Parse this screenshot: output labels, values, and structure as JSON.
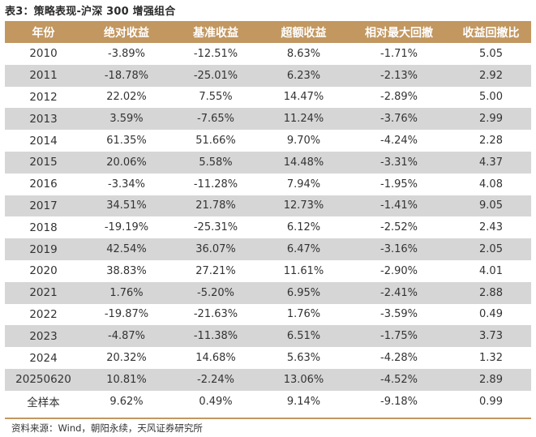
{
  "title": "表3：策略表现-沪深 300 增强组合",
  "table": {
    "headers": [
      "年份",
      "绝对收益",
      "基准收益",
      "超额收益",
      "相对最大回撤",
      "收益回撤比"
    ],
    "rows": [
      [
        "2010",
        "-3.89%",
        "-12.51%",
        "8.63%",
        "-1.71%",
        "5.05"
      ],
      [
        "2011",
        "-18.78%",
        "-25.01%",
        "6.23%",
        "-2.13%",
        "2.92"
      ],
      [
        "2012",
        "22.02%",
        "7.55%",
        "14.47%",
        "-2.89%",
        "5.00"
      ],
      [
        "2013",
        "3.59%",
        "-7.65%",
        "11.24%",
        "-3.76%",
        "2.99"
      ],
      [
        "2014",
        "61.35%",
        "51.66%",
        "9.70%",
        "-4.24%",
        "2.28"
      ],
      [
        "2015",
        "20.06%",
        "5.58%",
        "14.48%",
        "-3.31%",
        "4.37"
      ],
      [
        "2016",
        "-3.34%",
        "-11.28%",
        "7.94%",
        "-1.95%",
        "4.08"
      ],
      [
        "2017",
        "34.51%",
        "21.78%",
        "12.73%",
        "-1.41%",
        "9.05"
      ],
      [
        "2018",
        "-19.19%",
        "-25.31%",
        "6.12%",
        "-2.52%",
        "2.43"
      ],
      [
        "2019",
        "42.54%",
        "36.07%",
        "6.47%",
        "-3.16%",
        "2.05"
      ],
      [
        "2020",
        "38.83%",
        "27.21%",
        "11.61%",
        "-2.90%",
        "4.01"
      ],
      [
        "2021",
        "1.76%",
        "-5.20%",
        "6.95%",
        "-2.41%",
        "2.88"
      ],
      [
        "2022",
        "-19.87%",
        "-21.63%",
        "1.76%",
        "-3.59%",
        "0.49"
      ],
      [
        "2023",
        "-4.87%",
        "-11.38%",
        "6.51%",
        "-1.75%",
        "3.73"
      ],
      [
        "2024",
        "20.32%",
        "14.68%",
        "5.63%",
        "-4.28%",
        "1.32"
      ],
      [
        "20250620",
        "10.81%",
        "-2.24%",
        "13.06%",
        "-4.52%",
        "2.89"
      ],
      [
        "全样本",
        "9.62%",
        "0.49%",
        "9.14%",
        "-9.18%",
        "0.99"
      ]
    ]
  },
  "source": "资料来源：Wind，朝阳永续，天风证券研究所",
  "colors": {
    "header_bg": "#c29760",
    "stripe_bg": "#d6d6d6"
  }
}
